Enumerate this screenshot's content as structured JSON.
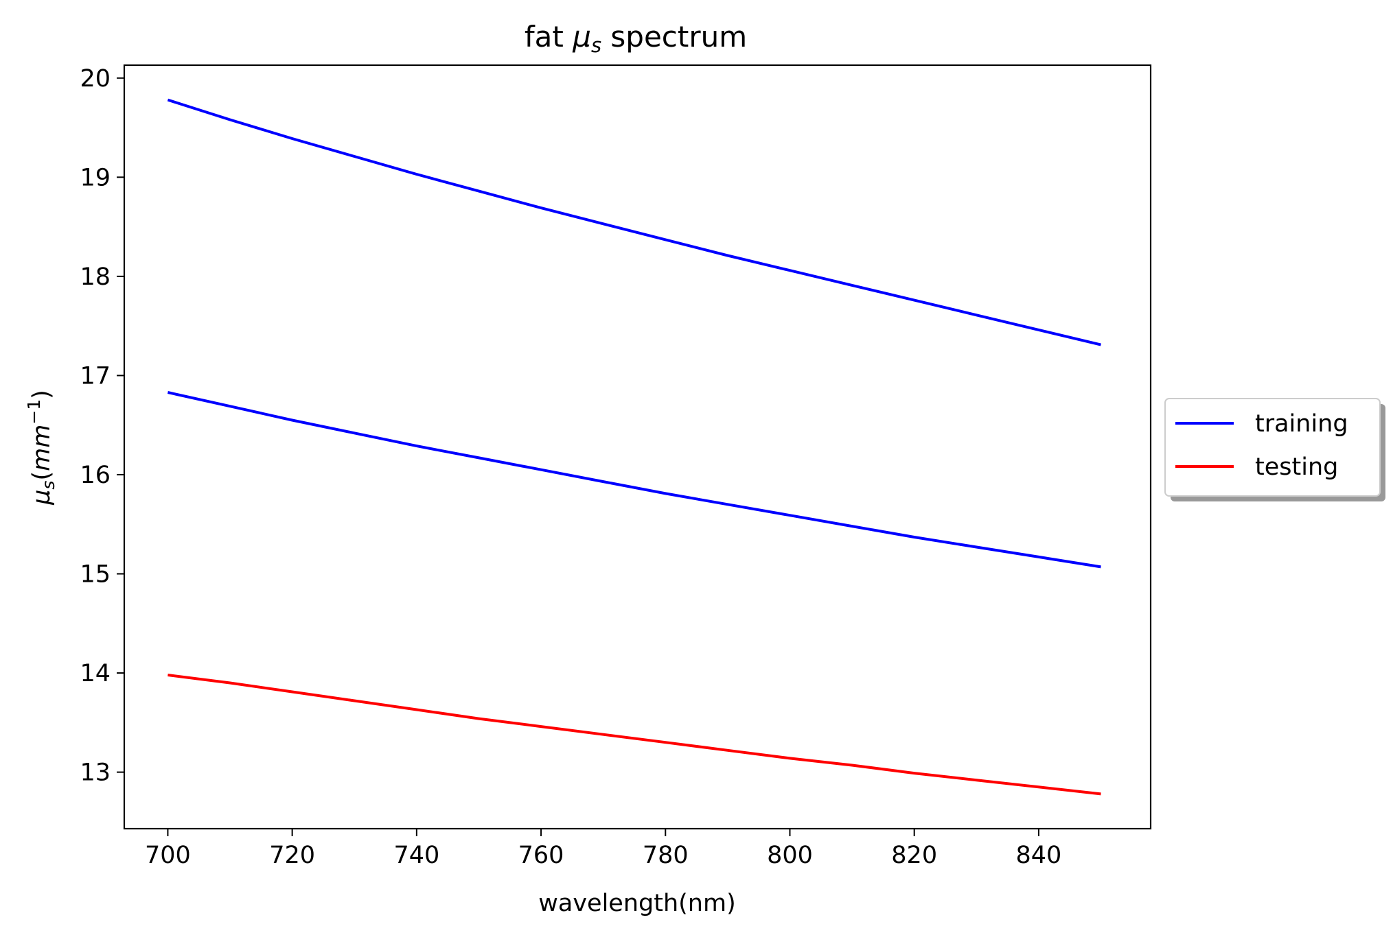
{
  "chart_data": {
    "type": "line",
    "title": "fat μs spectrum",
    "title_parts": {
      "prefix": "fat ",
      "symbol": "μ",
      "subscript": "s",
      "suffix": " spectrum"
    },
    "xlabel": "wavelength(nm)",
    "ylabel": "μs(mm⁻¹)",
    "ylabel_parts": {
      "symbol": "μ",
      "subscript": "s",
      "open": "(",
      "unit": "mm",
      "superscript": "−1",
      "close": ")"
    },
    "xlim": [
      693,
      858
    ],
    "ylim": [
      12.43,
      20.13
    ],
    "x_ticks": [
      700,
      720,
      740,
      760,
      780,
      800,
      820,
      840
    ],
    "y_ticks": [
      13,
      14,
      15,
      16,
      17,
      18,
      19,
      20
    ],
    "grid": false,
    "legend": {
      "placement": "outside-right",
      "entries": [
        {
          "label": "training",
          "color": "#0000ff"
        },
        {
          "label": "testing",
          "color": "#ff0000"
        }
      ]
    },
    "series": [
      {
        "legend": "training",
        "color": "#0000ff",
        "x": [
          700,
          710,
          720,
          730,
          740,
          750,
          760,
          770,
          780,
          790,
          800,
          810,
          820,
          830,
          840,
          850
        ],
        "values": [
          19.78,
          19.58,
          19.39,
          19.21,
          19.03,
          18.86,
          18.69,
          18.53,
          18.37,
          18.21,
          18.06,
          17.91,
          17.76,
          17.61,
          17.46,
          17.31
        ]
      },
      {
        "legend": "training",
        "color": "#0000ff",
        "x": [
          700,
          710,
          720,
          730,
          740,
          750,
          760,
          770,
          780,
          790,
          800,
          810,
          820,
          830,
          840,
          850
        ],
        "values": [
          16.83,
          16.69,
          16.55,
          16.42,
          16.29,
          16.17,
          16.05,
          15.93,
          15.81,
          15.7,
          15.59,
          15.48,
          15.37,
          15.27,
          15.17,
          15.07
        ]
      },
      {
        "legend": "testing",
        "color": "#ff0000",
        "x": [
          700,
          710,
          720,
          730,
          740,
          750,
          760,
          770,
          780,
          790,
          800,
          810,
          820,
          830,
          840,
          850
        ],
        "values": [
          13.98,
          13.9,
          13.81,
          13.72,
          13.63,
          13.54,
          13.46,
          13.38,
          13.3,
          13.22,
          13.14,
          13.07,
          12.99,
          12.92,
          12.85,
          12.78
        ]
      }
    ]
  }
}
